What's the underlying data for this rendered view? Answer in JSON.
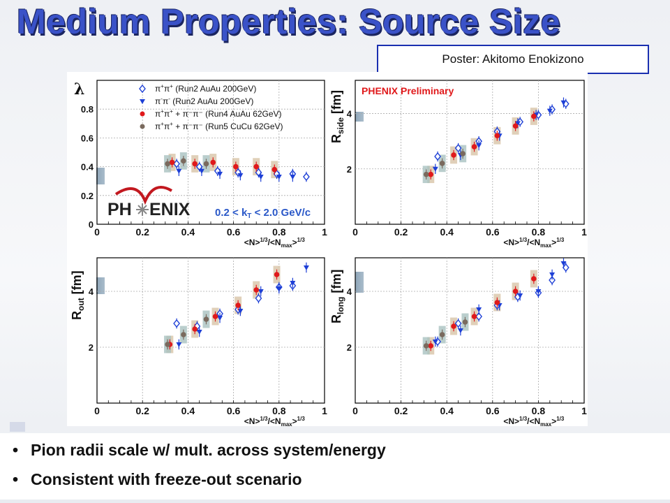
{
  "slide": {
    "title": "Medium Properties: Source Size",
    "poster_credit": "Poster: Akitomo Enokizono",
    "bullets": [
      "Pion radii scale w/ mult. across system/energy",
      "Consistent with freeze-out scenario"
    ]
  },
  "figure": {
    "logo_text": [
      "PH",
      "ENIX"
    ],
    "kt_label": "0.2 < k",
    "kt_sub": "T",
    "kt_rest": " < 2.0 GeV/c",
    "preliminary": "PHENIX Preliminary",
    "legend": [
      {
        "sup": "+",
        "sup2": "+",
        "pre": "π",
        "mid": "π",
        "text": " (Run2 AuAu 200GeV)",
        "marker": "open-diamond",
        "color": "#1d3fd6"
      },
      {
        "sup": "-",
        "sup2": "-",
        "pre": "π",
        "mid": "π",
        "text": " (Run2 AuAu 200GeV)",
        "marker": "triangle-down",
        "color": "#1d3fd6"
      },
      {
        "sup": "+",
        "sup2": "+",
        "pre": "π",
        "mid": "π",
        "text": " + π⁻π⁻ (Run4 AuAu 62GeV)",
        "marker": "circle",
        "color": "#e0191b"
      },
      {
        "sup": "+",
        "sup2": "+",
        "pre": "π",
        "mid": "π",
        "text": " + π⁻π⁻ (Run5 CuCu 62GeV)",
        "marker": "circle",
        "color": "#7a6a5e"
      }
    ]
  },
  "chart_data": [
    {
      "type": "scatter",
      "name": "lambda",
      "ylabel": "λ",
      "xlabel": "<N>^{1/3}/<N_max>^{1/3}",
      "xlim": [
        0,
        1
      ],
      "ylim": [
        0,
        1
      ],
      "xticks": [
        "0",
        "0.2",
        "0.4",
        "0.6",
        "0.8",
        "1"
      ],
      "yticks": [
        "0",
        "0.2",
        "0.4",
        "0.6",
        "0.8"
      ],
      "ytick_values": [
        0,
        0.2,
        0.4,
        0.6,
        0.8
      ],
      "grid": true,
      "series": [
        {
          "marker": "open-diamond",
          "x": [
            0.35,
            0.45,
            0.53,
            0.62,
            0.71,
            0.79,
            0.86,
            0.92
          ],
          "y": [
            0.42,
            0.4,
            0.37,
            0.36,
            0.36,
            0.35,
            0.35,
            0.33
          ]
        },
        {
          "marker": "triangle-down",
          "x": [
            0.36,
            0.46,
            0.54,
            0.63,
            0.72,
            0.8,
            0.86
          ],
          "y": [
            0.37,
            0.37,
            0.35,
            0.34,
            0.33,
            0.33,
            0.33
          ]
        },
        {
          "marker": "circle-red",
          "x": [
            0.33,
            0.43,
            0.51,
            0.61,
            0.7,
            0.78
          ],
          "y": [
            0.43,
            0.42,
            0.43,
            0.4,
            0.4,
            0.38
          ]
        },
        {
          "marker": "circle-gray",
          "x": [
            0.31,
            0.38,
            0.48
          ],
          "y": [
            0.42,
            0.44,
            0.42
          ]
        }
      ]
    },
    {
      "type": "scatter",
      "name": "rside",
      "ylabel": "R_side [fm]",
      "xlabel": "<N>^{1/3}/<N_max>^{1/3}",
      "xlim": [
        0,
        1
      ],
      "ylim": [
        0,
        5.2
      ],
      "xticks": [
        "0",
        "0.2",
        "0.4",
        "0.6",
        "0.8",
        "1"
      ],
      "yticks": [
        "2",
        "4"
      ],
      "ytick_values": [
        2,
        4
      ],
      "grid": true,
      "series": [
        {
          "marker": "open-diamond",
          "x": [
            0.36,
            0.45,
            0.54,
            0.62,
            0.72,
            0.8,
            0.86,
            0.92
          ],
          "y": [
            2.45,
            2.75,
            3.0,
            3.35,
            3.7,
            3.95,
            4.15,
            4.35
          ]
        },
        {
          "marker": "triangle-down",
          "x": [
            0.35,
            0.46,
            0.54,
            0.63,
            0.71,
            0.79,
            0.85,
            0.91
          ],
          "y": [
            2.0,
            2.5,
            2.85,
            3.2,
            3.65,
            3.95,
            4.1,
            4.4
          ]
        },
        {
          "marker": "circle-red",
          "x": [
            0.33,
            0.43,
            0.52,
            0.62,
            0.7,
            0.78
          ],
          "y": [
            1.8,
            2.5,
            2.8,
            3.2,
            3.55,
            3.9
          ]
        },
        {
          "marker": "circle-gray",
          "x": [
            0.31,
            0.38,
            0.47
          ],
          "y": [
            1.8,
            2.2,
            2.55
          ]
        }
      ]
    },
    {
      "type": "scatter",
      "name": "rout",
      "ylabel": "R_out [fm]",
      "xlabel": "<N>^{1/3}/<N_max>^{1/3}",
      "xlim": [
        0,
        1
      ],
      "ylim": [
        0,
        5.2
      ],
      "xticks": [
        "0",
        "0.2",
        "0.4",
        "0.6",
        "0.8",
        "1"
      ],
      "yticks": [
        "2",
        "4"
      ],
      "ytick_values": [
        2,
        4
      ],
      "grid": true,
      "series": [
        {
          "marker": "open-diamond",
          "x": [
            0.35,
            0.44,
            0.54,
            0.62,
            0.71,
            0.8,
            0.86
          ],
          "y": [
            2.85,
            2.75,
            3.2,
            3.35,
            3.75,
            4.15,
            4.2
          ]
        },
        {
          "marker": "triangle-down",
          "x": [
            0.36,
            0.45,
            0.54,
            0.63,
            0.72,
            0.8,
            0.86,
            0.92
          ],
          "y": [
            2.1,
            2.55,
            3.05,
            3.3,
            4.0,
            4.1,
            4.3,
            4.85
          ]
        },
        {
          "marker": "circle-red",
          "x": [
            0.32,
            0.43,
            0.52,
            0.62,
            0.7,
            0.79
          ],
          "y": [
            2.1,
            2.65,
            3.1,
            3.5,
            4.05,
            4.6
          ]
        },
        {
          "marker": "circle-gray",
          "x": [
            0.31,
            0.38,
            0.48
          ],
          "y": [
            2.1,
            2.45,
            3.0
          ]
        }
      ]
    },
    {
      "type": "scatter",
      "name": "rlong",
      "ylabel": "R_long [fm]",
      "xlabel": "<N>^{1/3}/<N_max>^{1/3}",
      "xlim": [
        0,
        1
      ],
      "ylim": [
        0,
        5.2
      ],
      "xticks": [
        "0",
        "0.2",
        "0.4",
        "0.6",
        "0.8",
        "1"
      ],
      "yticks": [
        "2",
        "4"
      ],
      "ytick_values": [
        2,
        4
      ],
      "grid": true,
      "series": [
        {
          "marker": "open-diamond",
          "x": [
            0.36,
            0.45,
            0.54,
            0.62,
            0.71,
            0.8,
            0.86,
            0.92
          ],
          "y": [
            2.2,
            2.85,
            3.1,
            3.5,
            3.8,
            3.95,
            4.4,
            4.85
          ]
        },
        {
          "marker": "triangle-down",
          "x": [
            0.35,
            0.46,
            0.54,
            0.63,
            0.72,
            0.8,
            0.86,
            0.91
          ],
          "y": [
            2.2,
            2.6,
            3.35,
            3.5,
            3.85,
            4.0,
            4.6,
            5.0
          ]
        },
        {
          "marker": "circle-red",
          "x": [
            0.33,
            0.43,
            0.52,
            0.62,
            0.7,
            0.78
          ],
          "y": [
            2.05,
            2.75,
            3.1,
            3.6,
            4.0,
            4.45
          ]
        },
        {
          "marker": "circle-gray",
          "x": [
            0.31,
            0.38,
            0.48
          ],
          "y": [
            2.05,
            2.45,
            2.9
          ]
        }
      ]
    }
  ]
}
